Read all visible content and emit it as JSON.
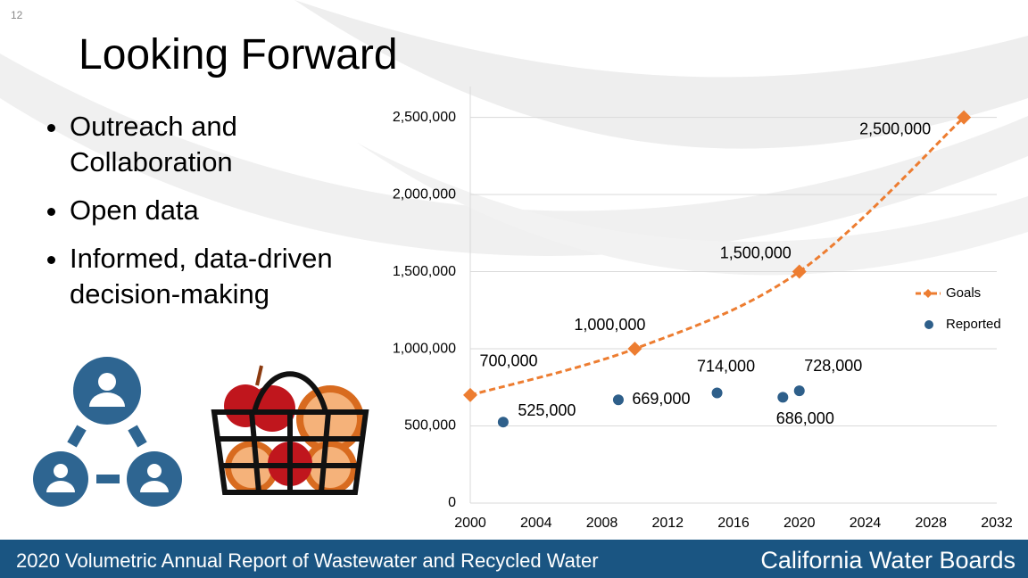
{
  "page_number": "12",
  "title": "Looking Forward",
  "bullets": [
    "Outreach and Collaboration",
    "Open data",
    "Informed, data-driven decision-making"
  ],
  "footer": {
    "left": "2020 Volumetric Annual Report of Wastewater and Recycled Water",
    "right": "California Water Boards"
  },
  "chart_data": {
    "type": "line",
    "xlim": [
      2000,
      2032
    ],
    "xticks": [
      2000,
      2004,
      2008,
      2012,
      2016,
      2020,
      2024,
      2028,
      2032
    ],
    "ylim": [
      0,
      2700000
    ],
    "yticks": [
      0,
      {
        "value": 500000,
        "label": "500,000"
      },
      {
        "value": 1000000,
        "label": "1,000,000"
      },
      {
        "value": 1500000,
        "label": "1,500,000"
      },
      {
        "value": 2000000,
        "label": "2,000,000"
      },
      {
        "value": 2500000,
        "label": "2,500,000"
      }
    ],
    "grid": true,
    "legend": "right",
    "series": [
      {
        "name": "Goals",
        "type": "line",
        "color": "#ed7d31",
        "x": [
          2000,
          2010,
          2020,
          2030
        ],
        "values": [
          700000,
          1000000,
          1500000,
          2500000
        ],
        "value_labels": [
          "700,000",
          "1,000,000",
          "1,500,000",
          "2,500,000"
        ]
      },
      {
        "name": "Reported",
        "type": "scatter",
        "color": "#2e5f8a",
        "x": [
          2002,
          2009,
          2015,
          2019,
          2020
        ],
        "values": [
          525000,
          669000,
          714000,
          686000,
          728000
        ],
        "value_labels": [
          "525,000",
          "669,000",
          "714,000",
          "686,000",
          "728,000"
        ]
      }
    ]
  }
}
